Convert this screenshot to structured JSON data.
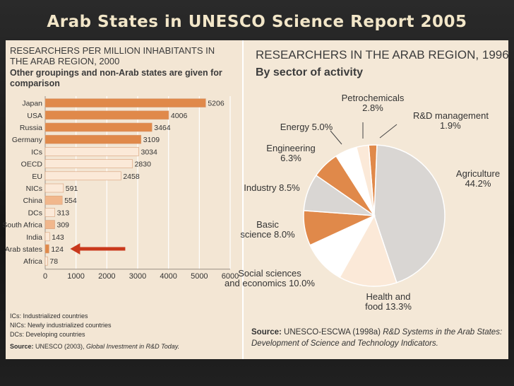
{
  "slide": {
    "title": "Arab States in UNESCO Science Report 2005"
  },
  "colors": {
    "orange": "#e0894a",
    "light_orange": "#f1b78c",
    "pale": "#fbe9d8",
    "arrow": "#c9381c",
    "grey": "#d9d6d3",
    "white": "#ffffff"
  },
  "chart_data": [
    {
      "type": "bar",
      "orientation": "horizontal",
      "title_lines": [
        "RESEARCHERS PER MILLION INHABITANTS IN",
        "THE ARAB REGION, 2000"
      ],
      "subtitle_lines": [
        "Other groupings and non-Arab states are given for",
        "comparison"
      ],
      "categories": [
        "Japan",
        "USA",
        "Russia",
        "Germany",
        "ICs",
        "OECD",
        "EU",
        "NICs",
        "China",
        "DCs",
        "South Africa",
        "India",
        "Arab states",
        "Africa"
      ],
      "values": [
        5206,
        4006,
        3464,
        3109,
        3034,
        2830,
        2458,
        591,
        554,
        313,
        309,
        143,
        124,
        78
      ],
      "value_labels": [
        "5206",
        "4006",
        "3464",
        "3109",
        "3034",
        "2830",
        "2458",
        "591",
        "554",
        "313",
        "309",
        "143",
        "124",
        "78"
      ],
      "bar_shade": [
        "orange",
        "orange",
        "orange",
        "orange",
        "pale",
        "pale",
        "pale",
        "pale",
        "light_orange",
        "pale",
        "light_orange",
        "pale",
        "orange",
        "pale"
      ],
      "xticks": [
        "0",
        "1000",
        "2000",
        "3000",
        "4000",
        "5000",
        "6000"
      ],
      "xlim": [
        0,
        6000
      ],
      "highlight": "Arab states",
      "footnotes": [
        "ICs: Industrialized countries",
        "NICs: Newly industrialized countries",
        "DCs: Developing countries"
      ],
      "source_prefix": "Source:",
      "source_rest": " UNESCO (2003), ",
      "source_italic": "Global Investment in R&D Today."
    },
    {
      "type": "pie",
      "title": "RESEARCHERS IN THE ARAB REGION, 1996",
      "subtitle": "By sector of activity",
      "slices": [
        {
          "label": "R&D management",
          "value_label": "1.9%",
          "value": 1.9,
          "shade": "orange"
        },
        {
          "label": "Agriculture",
          "value_label": "44.2%",
          "value": 44.2,
          "shade": "grey"
        },
        {
          "label": "Health and",
          "label2": "food",
          "value_label": "13.3%",
          "value": 13.3,
          "shade": "pale"
        },
        {
          "label": "Social sciences",
          "label2": "and economics",
          "value_label": "10.0%",
          "value": 10.0,
          "shade": "white"
        },
        {
          "label": "Basic",
          "label2": "science",
          "value_label": "8.0%",
          "value": 8.0,
          "shade": "orange"
        },
        {
          "label": "Industry",
          "value_label": "8.5%",
          "value": 8.5,
          "shade": "grey"
        },
        {
          "label": "Engineering",
          "value_label": "6.3%",
          "value": 6.3,
          "shade": "orange"
        },
        {
          "label": "Energy",
          "value_label": "5.0%",
          "value": 5.0,
          "shade": "white"
        },
        {
          "label": "Petrochemicals",
          "value_label": "2.8%",
          "value": 2.8,
          "shade": "pale"
        }
      ],
      "source_prefix": "Source:",
      "source_rest": " UNESCO-ESCWA (1998a) ",
      "source_italic1": "R&D Systems in the Arab States:",
      "source_italic2": "Development of Science and Technology Indicators."
    }
  ]
}
